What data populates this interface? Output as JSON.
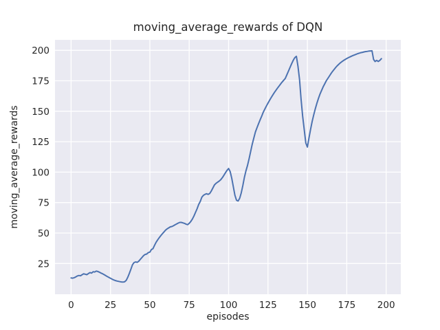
{
  "figure": {
    "title": "moving_average_rewards of DQN",
    "xlabel": "episodes",
    "ylabel": "moving_average_rewards"
  },
  "chart_data": {
    "type": "line",
    "title": "moving_average_rewards of DQN",
    "xlabel": "episodes",
    "ylabel": "moving_average_rewards",
    "legend": "none",
    "grid": "on",
    "style": "seaborn-darkgrid",
    "xlim": [
      -10.2,
      209.3
    ],
    "ylim": [
      -0.2,
      208.6
    ],
    "x_ticks": [
      0,
      25,
      50,
      75,
      100,
      125,
      150,
      175,
      200
    ],
    "y_ticks": [
      25,
      50,
      75,
      100,
      125,
      150,
      175,
      200
    ],
    "colors": {
      "line": "#4C72B0",
      "plot_background": "#EAEAF2",
      "grid": "#FFFFFF",
      "text": "#262626",
      "figure_background": "#FFFFFF"
    },
    "series": [
      {
        "name": "moving_average_rewards",
        "x_start": 0,
        "x_step": 1,
        "values": [
          13.2,
          13.0,
          13.4,
          14.0,
          14.8,
          15.2,
          15.0,
          15.8,
          16.6,
          16.2,
          15.9,
          16.8,
          17.6,
          17.2,
          18.3,
          18.0,
          18.8,
          18.5,
          17.9,
          17.2,
          16.6,
          15.9,
          15.1,
          14.3,
          13.6,
          12.9,
          12.2,
          11.6,
          11.1,
          10.7,
          10.4,
          10.1,
          9.9,
          9.8,
          10.0,
          11.2,
          13.8,
          17.0,
          20.5,
          24.0,
          25.8,
          26.3,
          26.0,
          27.0,
          28.5,
          30.0,
          31.5,
          32.5,
          32.8,
          34.0,
          34.4,
          36.5,
          37.2,
          40.0,
          42.5,
          44.5,
          46.3,
          48.0,
          49.5,
          51.0,
          52.5,
          53.5,
          54.3,
          55.1,
          55.4,
          56.0,
          56.8,
          57.5,
          58.2,
          58.8,
          58.8,
          58.4,
          58.0,
          57.3,
          56.9,
          58.0,
          59.5,
          61.5,
          64.0,
          67.0,
          70.0,
          73.5,
          76.0,
          79.5,
          81.0,
          81.8,
          82.3,
          81.8,
          82.5,
          84.5,
          87.0,
          89.5,
          90.8,
          91.8,
          92.7,
          93.8,
          95.5,
          97.5,
          99.5,
          101.5,
          103.0,
          100.5,
          95.0,
          88.0,
          81.0,
          77.0,
          76.3,
          78.5,
          83.0,
          89.0,
          95.5,
          101.0,
          105.5,
          111.0,
          117.0,
          123.0,
          128.0,
          133.0,
          136.5,
          139.8,
          143.0,
          146.0,
          149.2,
          151.8,
          154.3,
          156.7,
          159.0,
          161.2,
          163.3,
          165.3,
          167.2,
          169.0,
          170.7,
          172.4,
          174.0,
          175.5,
          177.0,
          180.0,
          183.0,
          186.0,
          189.0,
          191.8,
          194.0,
          195.1,
          187.0,
          176.0,
          160.0,
          146.0,
          135.0,
          124.0,
          120.6,
          128.0,
          135.0,
          141.5,
          147.0,
          152.0,
          156.5,
          160.5,
          164.0,
          167.0,
          170.0,
          172.5,
          175.0,
          177.0,
          179.0,
          181.0,
          182.8,
          184.4,
          186.0,
          187.4,
          188.6,
          189.8,
          190.8,
          191.7,
          192.5,
          193.3,
          194.0,
          194.6,
          195.2,
          195.8,
          196.3,
          196.8,
          197.3,
          197.7,
          198.1,
          198.4,
          198.7,
          199.0,
          199.2,
          199.4,
          199.5,
          199.6,
          192.5,
          190.8,
          191.8,
          190.9,
          191.8,
          193.2
        ]
      }
    ]
  }
}
